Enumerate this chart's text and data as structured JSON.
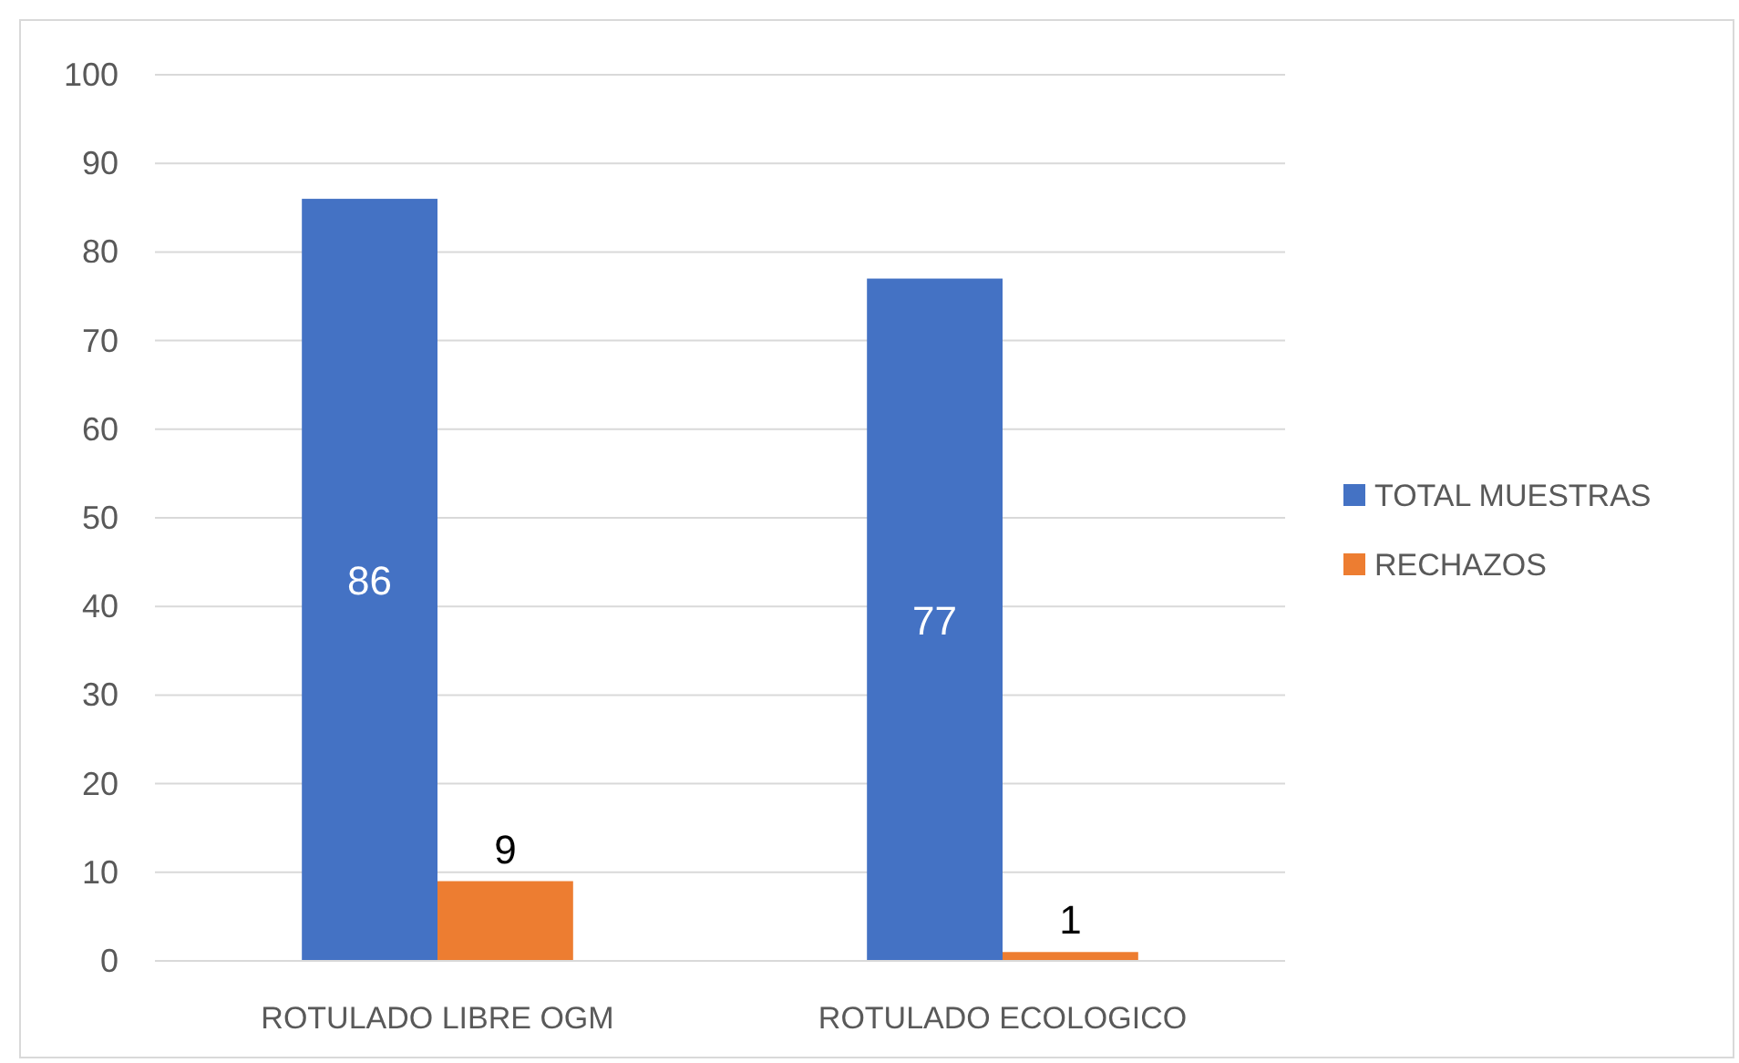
{
  "chart_data": {
    "type": "bar",
    "categories": [
      "ROTULADO LIBRE OGM",
      "ROTULADO ECOLOGICO"
    ],
    "series": [
      {
        "name": "TOTAL MUESTRAS",
        "color": "#4472c4",
        "values": [
          86,
          77
        ]
      },
      {
        "name": "RECHAZOS",
        "color": "#ed7d31",
        "values": [
          9,
          1
        ]
      }
    ],
    "ylim": [
      0,
      100
    ],
    "yticks": [
      0,
      10,
      20,
      30,
      40,
      50,
      60,
      70,
      80,
      90,
      100
    ],
    "grid": "y",
    "legend": "right",
    "data_labels": true
  }
}
